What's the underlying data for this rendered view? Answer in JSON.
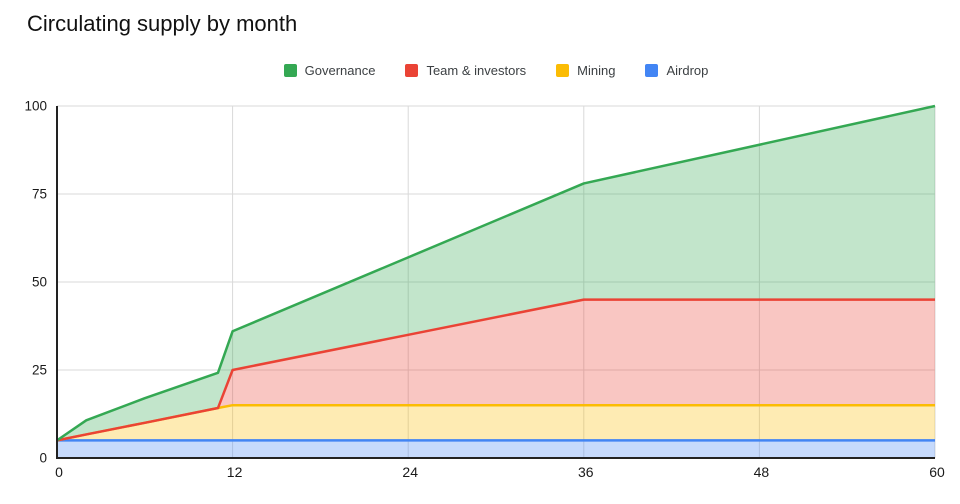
{
  "chart_data": {
    "type": "area",
    "stacked": true,
    "title": "Circulating supply by month",
    "xlabel": "",
    "ylabel": "",
    "xlim": [
      0,
      60
    ],
    "ylim": [
      0,
      100
    ],
    "x_ticks": [
      0,
      12,
      24,
      36,
      48,
      60
    ],
    "y_ticks": [
      0,
      25,
      50,
      75,
      100
    ],
    "grid": true,
    "legend_position": "top",
    "x": [
      0,
      2,
      6,
      11,
      12,
      24,
      36,
      48,
      60
    ],
    "series": [
      {
        "name": "Airdrop",
        "color": "#4285F4",
        "values": [
          5,
          5,
          5,
          5,
          5,
          5,
          5,
          5,
          5
        ]
      },
      {
        "name": "Mining",
        "color": "#FBBC04",
        "values": [
          0,
          1.7,
          5,
          9.2,
          10,
          10,
          10,
          10,
          10
        ]
      },
      {
        "name": "Team & investors",
        "color": "#EA4335",
        "values": [
          0,
          0,
          0,
          0,
          10,
          20,
          30,
          30,
          30
        ]
      },
      {
        "name": "Governance",
        "color": "#34A853",
        "values": [
          0,
          4,
          7,
          10,
          11,
          22,
          33,
          44,
          55
        ]
      }
    ],
    "stacked_totals": {
      "month_0": 5,
      "month_12": 36,
      "month_24": 57,
      "month_36": 78,
      "month_48": 89,
      "month_60": 100
    },
    "legend_order": [
      "Governance",
      "Team & investors",
      "Mining",
      "Airdrop"
    ],
    "style": {
      "fill_opacity": 0.3,
      "line_width": 2.5,
      "grid_color": "#d9d9d9",
      "axis_color": "#222222",
      "tick_label_color": "#1a1a1a",
      "tick_font_size": 13.5
    }
  }
}
